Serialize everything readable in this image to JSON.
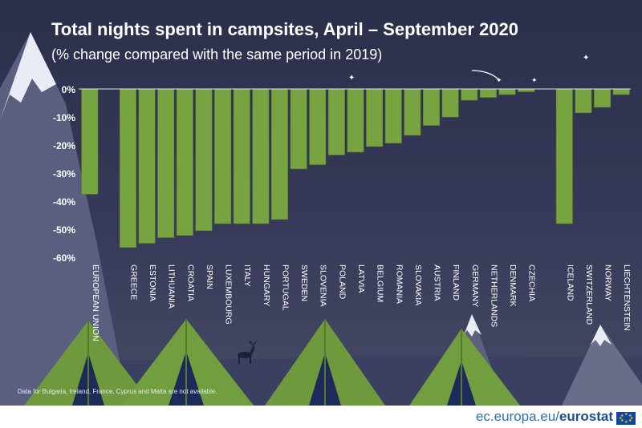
{
  "header": {
    "title": "Total nights spent in campsites, April – September 2020",
    "subtitle": "(% change compared with the same period in 2019)"
  },
  "footnote": "Data for Bulgaria, Ireland, France, Cyprus and Malta are not available.",
  "source": {
    "domain": "ec.europa.eu/",
    "brand": "eurostat"
  },
  "colors": {
    "bar": "#78a341",
    "bar_edge": "#5d8530",
    "background": "#30344f",
    "text": "#ffffff",
    "tent": "#6e9a3d"
  },
  "chart_data": {
    "type": "bar",
    "title": "Total nights spent in campsites, April – September 2020",
    "subtitle": "(% change compared with the same period in 2019)",
    "ylim": [
      -60,
      0
    ],
    "yticks": [
      0,
      -10,
      -20,
      -30,
      -40,
      -50,
      -60
    ],
    "ytick_labels": [
      "0%",
      "-10%",
      "-20%",
      "-30%",
      "-40%",
      "-50%",
      "-60%"
    ],
    "grid": false,
    "legend": "none",
    "categories": [
      "EUROPEAN UNION",
      "GREECE",
      "ESTONIA",
      "LITHUANIA",
      "CROATIA",
      "SPAIN",
      "LUXEMBOURG",
      "ITALY",
      "HUNGARY",
      "PORTUGAL",
      "SWEDEN",
      "SLOVENIA",
      "POLAND",
      "LATVIA",
      "BELGIUM",
      "ROMANIA",
      "SLOVAKIA",
      "AUSTRIA",
      "FINLAND",
      "GERMANY",
      "NETHERLANDS",
      "DENMARK",
      "CZECHIA",
      "ICELAND",
      "SWITZERLAND",
      "NORWAY",
      "LIECHTENSTEIN"
    ],
    "groups": [
      0,
      1,
      1,
      1,
      1,
      1,
      1,
      1,
      1,
      1,
      1,
      1,
      1,
      1,
      1,
      1,
      1,
      1,
      1,
      1,
      1,
      1,
      1,
      2,
      2,
      2,
      2
    ],
    "values": [
      -37.5,
      -56.5,
      -55,
      -53,
      -52.2,
      -50.5,
      -48,
      -48,
      -48,
      -46.5,
      -28.5,
      -27,
      -23.5,
      -22.5,
      -20.5,
      -19.3,
      -16.5,
      -13,
      -10,
      -4,
      -3,
      -2,
      -1,
      -48,
      -8.5,
      -6.5,
      -2
    ]
  }
}
